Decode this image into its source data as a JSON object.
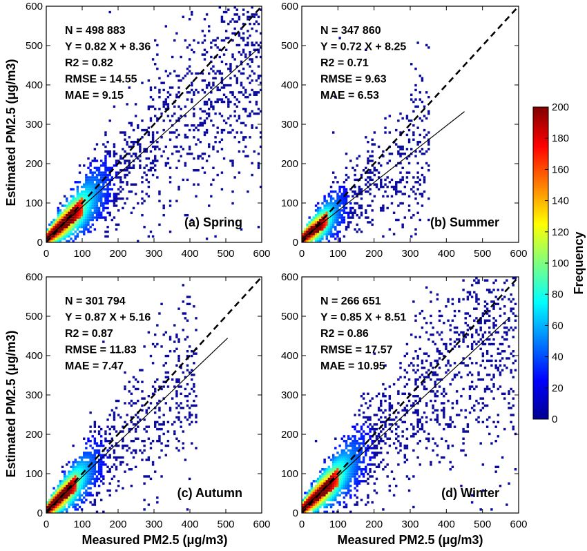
{
  "chart_data": {
    "type": "heatmap",
    "figure_title": "",
    "xlabel": "Measured PM2.5 (μg/m3)",
    "ylabel": "Estimated PM2.5 (μg/m3)",
    "xlim": [
      0,
      600
    ],
    "ylim": [
      0,
      600
    ],
    "ticks": [
      "0",
      "100",
      "200",
      "300",
      "400",
      "500",
      "600"
    ],
    "colorbar": {
      "label": "Frequency",
      "range": [
        0,
        200
      ],
      "ticks": [
        "0",
        "20",
        "40",
        "60",
        "80",
        "100",
        "120",
        "140",
        "160",
        "180",
        "200"
      ],
      "colormap": "jet"
    },
    "panels": [
      {
        "label": "(a) Spring",
        "stats": [
          "N = 498 883",
          "Y = 0.82 X + 8.36",
          "R2 = 0.82",
          "RMSE = 14.55",
          "MAE = 9.15"
        ],
        "fit": {
          "slope": 0.82,
          "intercept": 8.36,
          "x_range": [
            0,
            590
          ]
        },
        "one_to_one": true,
        "density_spread": 1.0,
        "max_x": 600
      },
      {
        "label": "(b) Summer",
        "stats": [
          "N = 347 860",
          "Y = 0.72 X + 8.25",
          "R2 = 0.71",
          "RMSE = 9.63",
          "MAE = 6.53"
        ],
        "fit": {
          "slope": 0.72,
          "intercept": 8.25,
          "x_range": [
            0,
            450
          ]
        },
        "one_to_one": true,
        "density_spread": 0.55,
        "max_x": 350
      },
      {
        "label": "(c) Autumn",
        "stats": [
          "N = 301 794",
          "Y = 0.87 X + 5.16",
          "R2 = 0.87",
          "RMSE = 11.83",
          "MAE = 7.47"
        ],
        "fit": {
          "slope": 0.87,
          "intercept": 5.16,
          "x_range": [
            0,
            505
          ]
        },
        "one_to_one": true,
        "density_spread": 0.8,
        "max_x": 420
      },
      {
        "label": "(d) Winter",
        "stats": [
          "N = 266 651",
          "Y = 0.85 X + 8.51",
          "R2 = 0.86",
          "RMSE = 17.57",
          "MAE = 10.95"
        ],
        "fit": {
          "slope": 0.85,
          "intercept": 8.51,
          "x_range": [
            0,
            575
          ]
        },
        "one_to_one": true,
        "density_spread": 1.0,
        "max_x": 590
      }
    ]
  }
}
